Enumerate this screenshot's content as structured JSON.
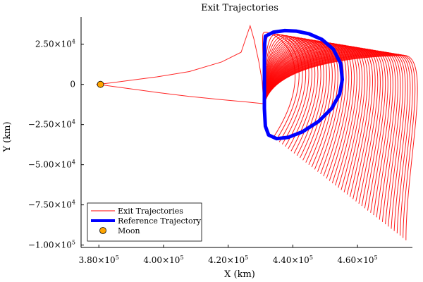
{
  "chart_data": {
    "type": "line",
    "title": "Exit Trajectories",
    "xlabel": "X (km)",
    "ylabel": "Y (km)",
    "xlim": [
      374500,
      477000
    ],
    "ylim": [
      -101500,
      42000
    ],
    "x_ticks": [
      {
        "value": 380000,
        "mantissa": "3.80",
        "exp": "5"
      },
      {
        "value": 400000,
        "mantissa": "4.00",
        "exp": "5"
      },
      {
        "value": 420000,
        "mantissa": "4.20",
        "exp": "5"
      },
      {
        "value": 440000,
        "mantissa": "4.40",
        "exp": "5"
      },
      {
        "value": 460000,
        "mantissa": "4.60",
        "exp": "5"
      }
    ],
    "y_ticks": [
      {
        "value": 25000,
        "mantissa": "2.50",
        "exp": "4",
        "sign": ""
      },
      {
        "value": 0,
        "plain": "0"
      },
      {
        "value": -25000,
        "mantissa": "2.50",
        "exp": "4",
        "sign": "−"
      },
      {
        "value": -50000,
        "mantissa": "5.00",
        "exp": "4",
        "sign": "−"
      },
      {
        "value": -75000,
        "mantissa": "7.50",
        "exp": "4",
        "sign": "−"
      },
      {
        "value": -100000,
        "mantissa": "1.00",
        "exp": "5",
        "sign": "−"
      }
    ],
    "grid": false,
    "legend_position": "bottom-left",
    "series": [
      {
        "name": "Exit Trajectories",
        "color": "#ff0000",
        "style": "thin-line",
        "fan": {
          "count": 46,
          "start": [
            431000,
            -16500
          ],
          "top_start": [
            431800,
            32500
          ],
          "top_end": [
            475000,
            18000
          ],
          "bottom_start": [
            434000,
            -33000
          ],
          "bottom_end": [
            475000,
            -97000
          ],
          "mid_start": [
            446000,
            4000
          ],
          "mid_end": [
            475000,
            -50000
          ]
        },
        "escape_path": [
          [
            431000,
            -12000
          ],
          [
            426000,
            -11000
          ],
          [
            418000,
            -9500
          ],
          [
            408000,
            -7500
          ],
          [
            398000,
            -5000
          ],
          [
            390000,
            -2800
          ],
          [
            384000,
            -1200
          ],
          [
            381000,
            -300
          ],
          [
            379200,
            0
          ],
          [
            381000,
            300
          ],
          [
            384000,
            1000
          ],
          [
            390000,
            2600
          ],
          [
            398000,
            4700
          ],
          [
            408000,
            8000
          ],
          [
            418000,
            14000
          ],
          [
            424000,
            20000
          ],
          [
            426800,
            36500
          ],
          [
            428000,
            28000
          ],
          [
            429500,
            14000
          ],
          [
            430500,
            2000
          ],
          [
            431000,
            -12000
          ]
        ]
      },
      {
        "name": "Reference Trajectory",
        "color": "#0000ff",
        "style": "thick-line",
        "points": [
          [
            431500,
            30000
          ],
          [
            434000,
            32500
          ],
          [
            437500,
            33500
          ],
          [
            441000,
            33200
          ],
          [
            445000,
            31500
          ],
          [
            449000,
            28000
          ],
          [
            452500,
            22000
          ],
          [
            454800,
            13000
          ],
          [
            455300,
            3000
          ],
          [
            454500,
            -6000
          ],
          [
            452000,
            -15000
          ],
          [
            448000,
            -23000
          ],
          [
            443000,
            -29500
          ],
          [
            438500,
            -33000
          ],
          [
            435000,
            -33800
          ],
          [
            432500,
            -31500
          ],
          [
            431500,
            -26000
          ],
          [
            431200,
            -15000
          ],
          [
            431200,
            0
          ],
          [
            431200,
            15000
          ],
          [
            431300,
            25000
          ],
          [
            431500,
            30000
          ]
        ]
      },
      {
        "name": "Moon",
        "color": "#ffa500",
        "style": "marker",
        "points": [
          [
            380500,
            0
          ]
        ]
      }
    ]
  }
}
